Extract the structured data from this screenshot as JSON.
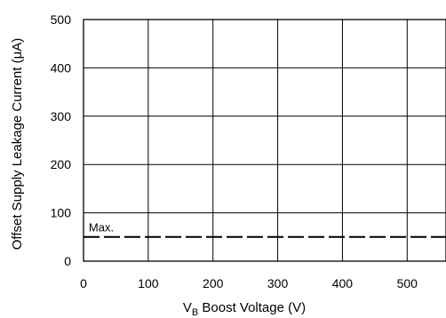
{
  "chart_data": {
    "type": "line",
    "title": "",
    "xlabel": {
      "main": "V",
      "subscript": "B",
      "rest": " Boost Voltage (V)"
    },
    "ylabel": "Offset Supply Leakage Current (μA)",
    "xlim": [
      0,
      560
    ],
    "ylim": [
      0,
      500
    ],
    "x_ticks": [
      0,
      100,
      200,
      300,
      400,
      500
    ],
    "y_ticks": [
      0,
      100,
      200,
      300,
      400,
      500
    ],
    "x_tick_labels": [
      "0",
      "100",
      "200",
      "300",
      "400",
      "500"
    ],
    "y_tick_labels": [
      "0",
      "100",
      "200",
      "300",
      "400",
      "500"
    ],
    "grid": true,
    "series": [
      {
        "name": "Max.",
        "style": "dashed",
        "x": [
          0,
          560
        ],
        "y": [
          50,
          50
        ]
      }
    ],
    "annotations": [
      {
        "text": "Max.",
        "x": 15,
        "y": 62
      }
    ]
  }
}
